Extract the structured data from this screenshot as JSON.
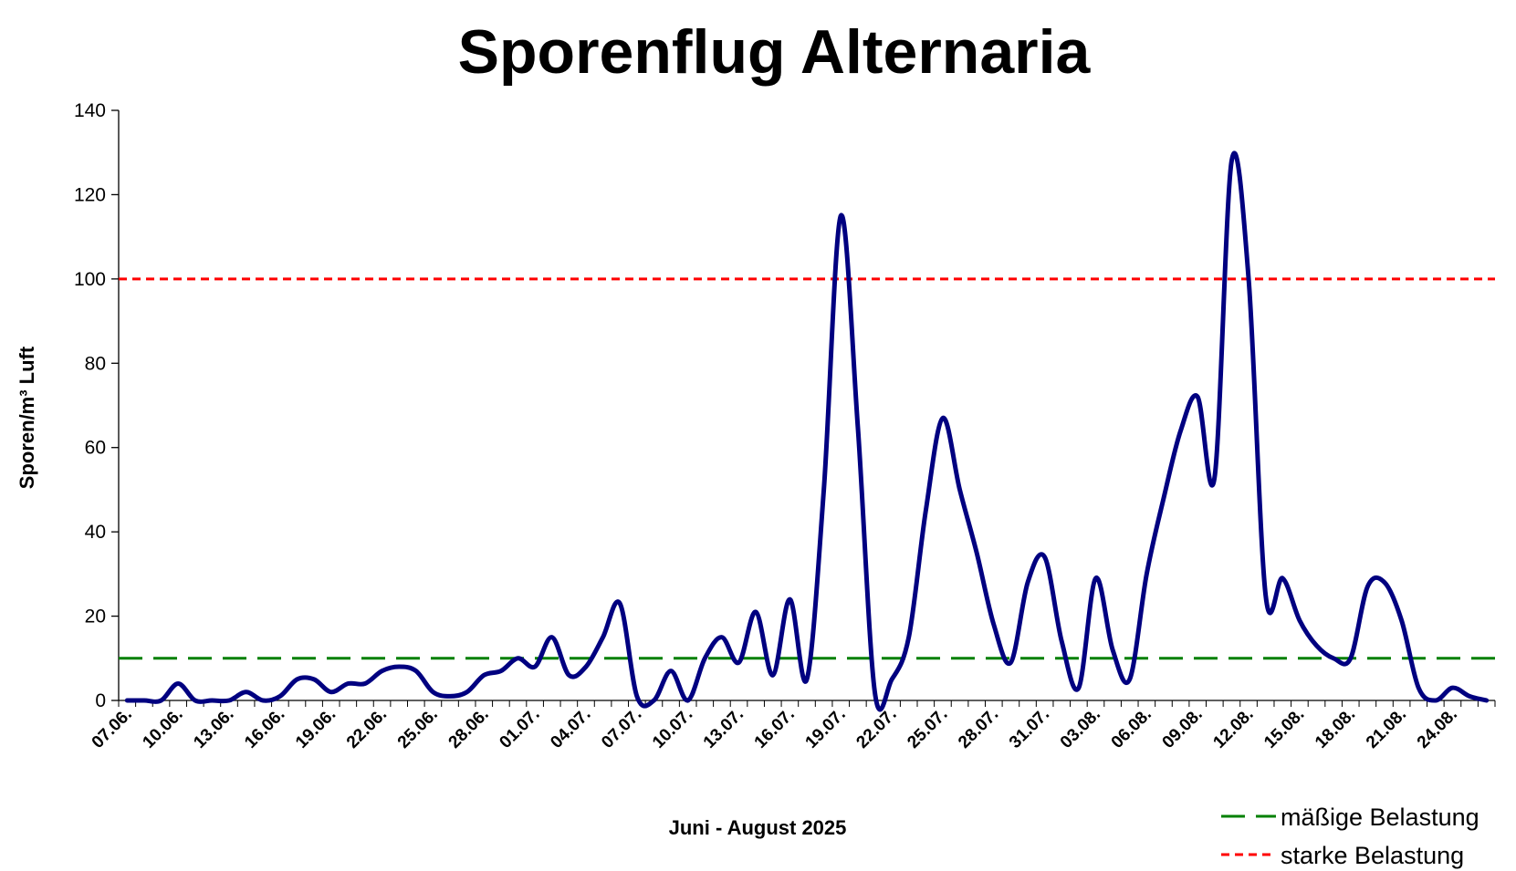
{
  "chart_data": {
    "type": "line",
    "title": "Sporenflug Alternaria",
    "xlabel": "Juni - August 2025",
    "ylabel": "Sporen/m³ Luft",
    "ylim": [
      0,
      140
    ],
    "yticks": [
      0,
      20,
      40,
      60,
      80,
      100,
      120,
      140
    ],
    "xlim": [
      "07.06.",
      "26.08."
    ],
    "xticks": [
      "07.06.",
      "10.06.",
      "13.06.",
      "16.06.",
      "19.06.",
      "22.06.",
      "25.06.",
      "28.06.",
      "01.07.",
      "04.07.",
      "07.07.",
      "10.07.",
      "13.07.",
      "16.07.",
      "19.07.",
      "22.07.",
      "25.07.",
      "28.07.",
      "31.07.",
      "03.08.",
      "06.08.",
      "09.08.",
      "12.08.",
      "15.08.",
      "18.08.",
      "21.08.",
      "24.08."
    ],
    "grid": false,
    "legend_position": "bottom-right",
    "series": [
      {
        "name": "",
        "color": "#000080",
        "smooth": true,
        "x": [
          "07.06.",
          "08.06.",
          "09.06.",
          "10.06.",
          "11.06.",
          "12.06.",
          "13.06.",
          "14.06.",
          "15.06.",
          "16.06.",
          "17.06.",
          "18.06.",
          "19.06.",
          "20.06.",
          "21.06.",
          "22.06.",
          "23.06.",
          "24.06.",
          "25.06.",
          "26.06.",
          "27.06.",
          "28.06.",
          "29.06.",
          "30.06.",
          "01.07.",
          "02.07.",
          "03.07.",
          "04.07.",
          "05.07.",
          "06.07.",
          "07.07.",
          "08.07.",
          "09.07.",
          "10.07.",
          "11.07.",
          "12.07.",
          "13.07.",
          "14.07.",
          "15.07.",
          "16.07.",
          "17.07.",
          "18.07.",
          "19.07.",
          "20.07.",
          "21.07.",
          "22.07.",
          "23.07.",
          "24.07.",
          "25.07.",
          "26.07.",
          "27.07.",
          "28.07.",
          "29.07.",
          "30.07.",
          "31.07.",
          "01.08.",
          "02.08.",
          "03.08.",
          "04.08.",
          "05.08.",
          "06.08.",
          "07.08.",
          "08.08.",
          "09.08.",
          "10.08.",
          "11.08.",
          "12.08.",
          "13.08.",
          "14.08.",
          "15.08.",
          "16.08.",
          "17.08.",
          "18.08.",
          "19.08.",
          "20.08.",
          "21.08.",
          "22.08.",
          "23.08.",
          "24.08.",
          "25.08.",
          "26.08."
        ],
        "y": [
          0,
          0,
          0,
          4,
          0,
          0,
          0,
          2,
          0,
          1,
          5,
          5,
          2,
          4,
          4,
          7,
          8,
          7,
          2,
          1,
          2,
          6,
          7,
          10,
          8,
          15,
          6,
          8,
          15,
          23,
          1,
          0,
          7,
          0,
          10,
          15,
          9,
          21,
          6,
          24,
          5,
          50,
          115,
          65,
          2,
          5,
          15,
          45,
          67,
          50,
          35,
          18,
          9,
          28,
          34,
          14,
          3,
          29,
          12,
          5,
          30,
          48,
          64,
          72,
          53,
          128,
          100,
          25,
          29,
          19,
          13,
          10,
          10,
          27,
          28,
          19,
          3,
          0,
          3,
          1,
          0
        ]
      }
    ],
    "reference_lines": [
      {
        "name": "mäßige Belastung",
        "value": 10,
        "color": "#008000",
        "style": "long-dash"
      },
      {
        "name": "starke Belastung",
        "value": 100,
        "color": "#ff0000",
        "style": "short-dash"
      }
    ]
  }
}
